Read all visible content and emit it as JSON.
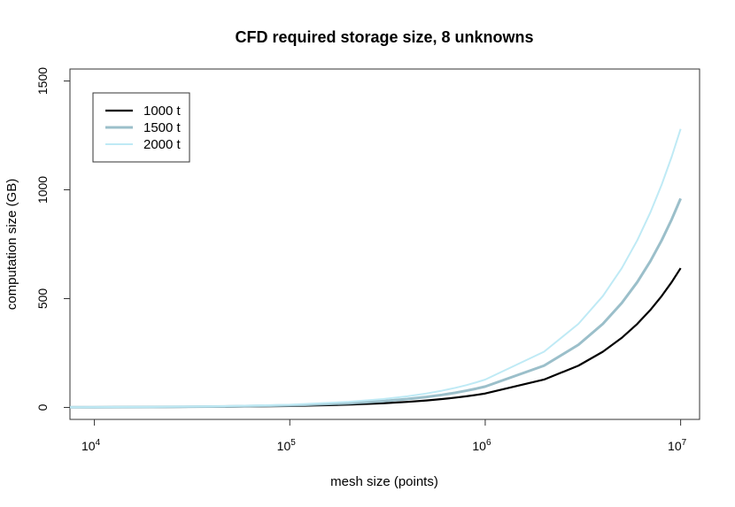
{
  "chart_data": {
    "type": "line",
    "title": "CFD required storage size, 8 unknowns",
    "xlabel": "mesh size (points)",
    "ylabel": "computation size (GB)",
    "x_scale": "log",
    "xlim": [
      7500,
      12500000
    ],
    "ylim": [
      -55,
      1555
    ],
    "x_ticks": [
      {
        "value": 10000,
        "base": "10",
        "exp": "4"
      },
      {
        "value": 100000,
        "base": "10",
        "exp": "5"
      },
      {
        "value": 1000000,
        "base": "10",
        "exp": "6"
      },
      {
        "value": 10000000,
        "base": "10",
        "exp": "7"
      }
    ],
    "y_ticks": [
      {
        "value": 0,
        "label": "0"
      },
      {
        "value": 500,
        "label": "500"
      },
      {
        "value": 1000,
        "label": "1000"
      },
      {
        "value": 1500,
        "label": "1500"
      }
    ],
    "grid": false,
    "legend_position": "top-left",
    "x": [
      7500,
      10000,
      20000,
      50000,
      100000,
      200000,
      300000,
      400000,
      500000,
      600000,
      700000,
      800000,
      900000,
      1000000,
      2000000,
      3000000,
      4000000,
      5000000,
      6000000,
      7000000,
      8000000,
      9000000,
      10000000
    ],
    "series": [
      {
        "name": "1000 t",
        "color": "#000000",
        "width": 2.2,
        "values": [
          0.48,
          0.64,
          1.28,
          3.2,
          6.4,
          12.8,
          19.2,
          25.6,
          32,
          38.4,
          44.8,
          51.2,
          57.6,
          64,
          128,
          192,
          256,
          320,
          384,
          448,
          512,
          576,
          640
        ]
      },
      {
        "name": "1500 t",
        "color": "#9bbfca",
        "width": 3,
        "values": [
          0.72,
          0.96,
          1.92,
          4.8,
          9.6,
          19.2,
          28.8,
          38.4,
          48,
          57.6,
          67.2,
          76.8,
          86.4,
          96,
          192,
          288,
          384,
          480,
          576,
          672,
          768,
          864,
          960
        ]
      },
      {
        "name": "2000 t",
        "color": "#bfeaf5",
        "width": 2,
        "values": [
          0.96,
          1.28,
          2.56,
          6.4,
          12.8,
          25.6,
          38.4,
          51.2,
          64,
          76.8,
          89.6,
          102.4,
          115.2,
          128,
          256,
          384,
          512,
          640,
          768,
          896,
          1024,
          1152,
          1280
        ]
      }
    ]
  }
}
